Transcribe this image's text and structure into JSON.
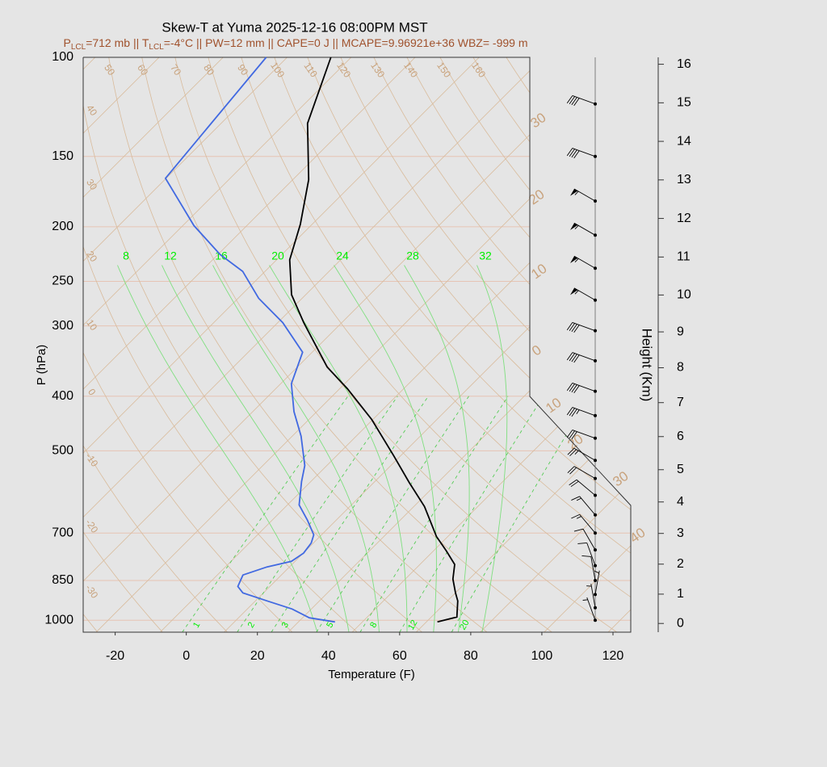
{
  "chart_data": {
    "type": "skew-t",
    "title": "Skew-T at Yuma 2025-12-16 08:00PM MST",
    "subtitle": [
      "P",
      "LCL",
      "=712 mb || T",
      "LCL",
      "=-4°C || PW=12 mm || CAPE=0 J || MCAPE=9.96921e+36 WBZ= -999 m"
    ],
    "xlabel": "Temperature (F)",
    "ylabel": "P (hPa)",
    "y2label": "Height (Km)",
    "xlim": [
      -29,
      125
    ],
    "xticks": [
      -20,
      0,
      20,
      40,
      60,
      80,
      100,
      120
    ],
    "ylim": [
      1050,
      100
    ],
    "ylog": true,
    "yticks": [
      100,
      150,
      200,
      250,
      300,
      400,
      500,
      700,
      850,
      1000
    ],
    "y2ticks": [
      0,
      1,
      2,
      3,
      4,
      5,
      6,
      7,
      8,
      9,
      10,
      11,
      12,
      13,
      14,
      15,
      16
    ],
    "series": [
      {
        "color": "#000000",
        "pressure": [
          1007,
          987,
          924,
          894,
          845,
          796,
          753,
          710,
          628,
          569,
          510,
          440,
          388,
          355,
          296,
          264,
          229,
          198,
          165,
          131,
          100
        ],
        "values": [
          71.1,
          75.2,
          70.9,
          68.0,
          63.4,
          59.8,
          53.6,
          46.8,
          35.0,
          23.9,
          12.0,
          -4.3,
          -19.8,
          -31.6,
          -50.7,
          -62.0,
          -72.3,
          -79.3,
          -89.5,
          -105.7,
          -117.7
        ]
      },
      {
        "color": "#4169e1",
        "pressure": [
          1007,
          990,
          955,
          924,
          894,
          871,
          831,
          804,
          786,
          760,
          729,
          705,
          664,
          624,
          567,
          531,
          471,
          426,
          380,
          334,
          296,
          268,
          240,
          224,
          199,
          164,
          100
        ],
        "values": [
          42.3,
          33.9,
          26.6,
          17.3,
          8.2,
          5.0,
          3.2,
          7.7,
          13.0,
          14.1,
          13.4,
          11.8,
          5.9,
          -0.7,
          -6.6,
          -10.2,
          -19.5,
          -28.4,
          -37.0,
          -42.7,
          -56.6,
          -70.2,
          -82.3,
          -93.4,
          -108.9,
          -130.2,
          -135.9
        ]
      }
    ],
    "winds": {
      "pressure": [
        121,
        150,
        180,
        207,
        237,
        270,
        306,
        346,
        392,
        433,
        475,
        520,
        560,
        600,
        650,
        700,
        750,
        800,
        850,
        900,
        950,
        1000
      ],
      "speed": [
        40,
        40,
        55,
        55,
        55,
        55,
        40,
        40,
        40,
        35,
        30,
        25,
        20,
        20,
        15,
        15,
        10,
        10,
        10,
        5,
        5,
        5
      ],
      "direction": [
        290,
        290,
        300,
        300,
        300,
        300,
        290,
        290,
        290,
        290,
        290,
        300,
        300,
        310,
        320,
        320,
        330,
        340,
        350,
        10,
        350,
        340
      ]
    },
    "moist_adiabat_labels": [
      8,
      12,
      16,
      20,
      24,
      28,
      32
    ],
    "mixing_ratio_labels": [
      1,
      2,
      3,
      5,
      8,
      12,
      20
    ],
    "dry_adiabat_labels": [
      50,
      60,
      70,
      80,
      90,
      100,
      110,
      120,
      130,
      140,
      150,
      160
    ],
    "left_labels": [
      40,
      30,
      20,
      10,
      0,
      -10,
      -20,
      -30
    ],
    "isotherm_labels": [
      30,
      20,
      10,
      0,
      10,
      20,
      30,
      40
    ]
  }
}
